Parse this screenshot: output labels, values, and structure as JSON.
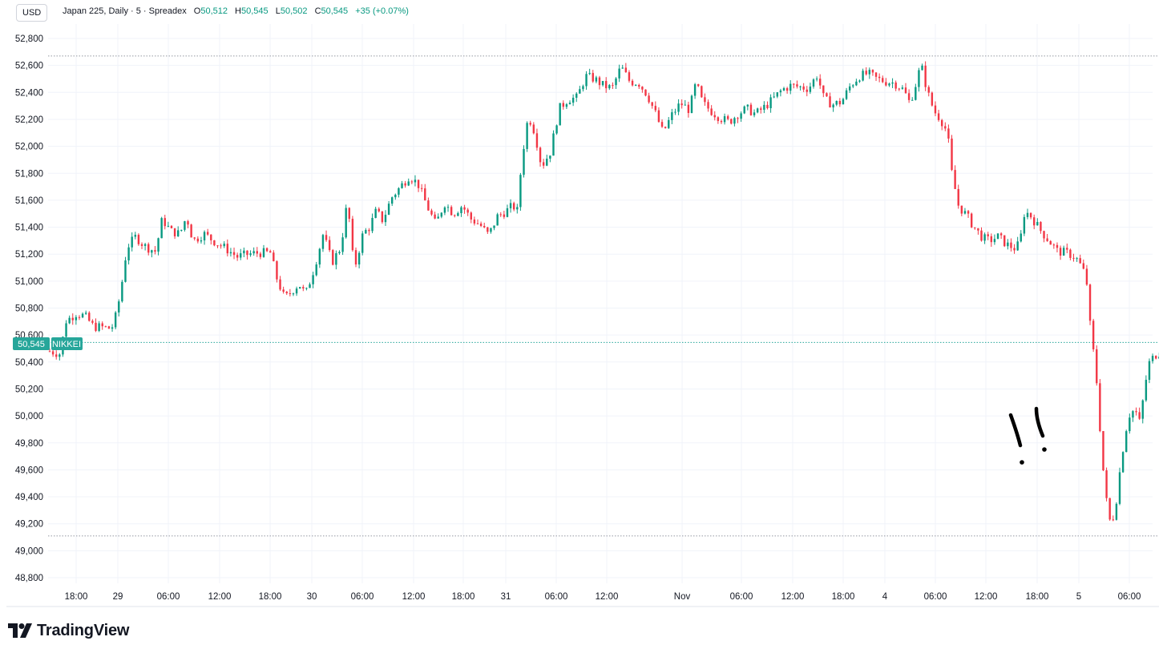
{
  "header": {
    "currency": "USD",
    "symbol": "Japan 225, Daily · 5 · Spreadex",
    "ohlc": {
      "o_label": "O",
      "o_value": "50,512",
      "h_label": "H",
      "h_value": "50,545",
      "l_label": "L",
      "l_value": "50,502",
      "c_label": "C",
      "c_value": "50,545",
      "change": "+35 (+0.07%)"
    }
  },
  "last_price_label": {
    "price": "50,545",
    "tag": "NIKKEI"
  },
  "brand": {
    "name": "TradingView"
  },
  "colors": {
    "up": "#089981",
    "down": "#f23645",
    "grid": "#f0f3fa",
    "accent": "#26a69a"
  },
  "annotation": {
    "text": "!!"
  },
  "chart_data": {
    "type": "candlestick",
    "ylim": [
      48700,
      52900
    ],
    "y_ticks": [
      "52,800",
      "52,600",
      "52,400",
      "52,200",
      "52,000",
      "51,800",
      "51,600",
      "51,400",
      "51,200",
      "51,000",
      "50,800",
      "50,600",
      "50,400",
      "50,200",
      "50,000",
      "49,800",
      "49,600",
      "49,400",
      "49,200",
      "49,000",
      "48,800"
    ],
    "x_ticks": [
      "18:00",
      "29",
      "06:00",
      "12:00",
      "18:00",
      "30",
      "06:00",
      "12:00",
      "18:00",
      "31",
      "06:00",
      "12:00",
      "Nov",
      "06:00",
      "12:00",
      "18:00",
      "4",
      "06:00",
      "12:00",
      "18:00",
      "5",
      "06:00"
    ],
    "reference_lines": {
      "high": 52670,
      "low": 49110,
      "last": 50545
    },
    "price_path": [
      [
        0.0,
        50480
      ],
      [
        0.01,
        50460
      ],
      [
        0.014,
        50700
      ],
      [
        0.024,
        50760
      ],
      [
        0.032,
        50740
      ],
      [
        0.04,
        50660
      ],
      [
        0.046,
        50660
      ],
      [
        0.054,
        50650
      ],
      [
        0.058,
        50670
      ],
      [
        0.064,
        50900
      ],
      [
        0.07,
        51250
      ],
      [
        0.078,
        51330
      ],
      [
        0.086,
        51260
      ],
      [
        0.096,
        51220
      ],
      [
        0.102,
        51460
      ],
      [
        0.11,
        51370
      ],
      [
        0.118,
        51350
      ],
      [
        0.124,
        51480
      ],
      [
        0.13,
        51300
      ],
      [
        0.14,
        51350
      ],
      [
        0.15,
        51290
      ],
      [
        0.16,
        51240
      ],
      [
        0.17,
        51180
      ],
      [
        0.18,
        51200
      ],
      [
        0.19,
        51210
      ],
      [
        0.2,
        51210
      ],
      [
        0.206,
        51020
      ],
      [
        0.213,
        50870
      ],
      [
        0.22,
        50930
      ],
      [
        0.226,
        50980
      ],
      [
        0.232,
        50900
      ],
      [
        0.24,
        51100
      ],
      [
        0.248,
        51350
      ],
      [
        0.256,
        51140
      ],
      [
        0.264,
        51250
      ],
      [
        0.27,
        51600
      ],
      [
        0.276,
        51080
      ],
      [
        0.284,
        51350
      ],
      [
        0.29,
        51400
      ],
      [
        0.296,
        51520
      ],
      [
        0.302,
        51450
      ],
      [
        0.31,
        51620
      ],
      [
        0.318,
        51700
      ],
      [
        0.326,
        51780
      ],
      [
        0.334,
        51720
      ],
      [
        0.342,
        51560
      ],
      [
        0.35,
        51420
      ],
      [
        0.358,
        51580
      ],
      [
        0.366,
        51500
      ],
      [
        0.374,
        51560
      ],
      [
        0.382,
        51460
      ],
      [
        0.39,
        51420
      ],
      [
        0.398,
        51340
      ],
      [
        0.406,
        51480
      ],
      [
        0.414,
        51520
      ],
      [
        0.42,
        51560
      ],
      [
        0.424,
        51520
      ],
      [
        0.428,
        51900
      ],
      [
        0.434,
        52230
      ],
      [
        0.44,
        52100
      ],
      [
        0.446,
        51850
      ],
      [
        0.454,
        51960
      ],
      [
        0.462,
        52280
      ],
      [
        0.47,
        52350
      ],
      [
        0.478,
        52360
      ],
      [
        0.486,
        52520
      ],
      [
        0.494,
        52500
      ],
      [
        0.502,
        52450
      ],
      [
        0.51,
        52430
      ],
      [
        0.518,
        52590
      ],
      [
        0.526,
        52480
      ],
      [
        0.534,
        52470
      ],
      [
        0.542,
        52380
      ],
      [
        0.55,
        52230
      ],
      [
        0.556,
        52100
      ],
      [
        0.564,
        52230
      ],
      [
        0.572,
        52320
      ],
      [
        0.58,
        52270
      ],
      [
        0.586,
        52470
      ],
      [
        0.592,
        52320
      ],
      [
        0.6,
        52260
      ],
      [
        0.608,
        52210
      ],
      [
        0.616,
        52180
      ],
      [
        0.624,
        52240
      ],
      [
        0.632,
        52280
      ],
      [
        0.64,
        52240
      ],
      [
        0.648,
        52290
      ],
      [
        0.656,
        52350
      ],
      [
        0.664,
        52420
      ],
      [
        0.672,
        52450
      ],
      [
        0.68,
        52440
      ],
      [
        0.688,
        52430
      ],
      [
        0.696,
        52530
      ],
      [
        0.702,
        52350
      ],
      [
        0.71,
        52310
      ],
      [
        0.718,
        52330
      ],
      [
        0.726,
        52450
      ],
      [
        0.734,
        52520
      ],
      [
        0.742,
        52540
      ],
      [
        0.75,
        52500
      ],
      [
        0.758,
        52480
      ],
      [
        0.766,
        52470
      ],
      [
        0.774,
        52420
      ],
      [
        0.78,
        52320
      ],
      [
        0.786,
        52480
      ],
      [
        0.79,
        52610
      ],
      [
        0.796,
        52400
      ],
      [
        0.802,
        52260
      ],
      [
        0.808,
        52200
      ],
      [
        0.814,
        52100
      ],
      [
        0.818,
        51800
      ],
      [
        0.824,
        51560
      ],
      [
        0.832,
        51480
      ],
      [
        0.838,
        51400
      ],
      [
        0.846,
        51320
      ],
      [
        0.852,
        51300
      ],
      [
        0.86,
        51330
      ],
      [
        0.868,
        51270
      ],
      [
        0.876,
        51240
      ],
      [
        0.88,
        51300
      ],
      [
        0.884,
        51520
      ],
      [
        0.89,
        51480
      ],
      [
        0.898,
        51380
      ],
      [
        0.906,
        51300
      ],
      [
        0.914,
        51220
      ],
      [
        0.922,
        51210
      ],
      [
        0.93,
        51180
      ],
      [
        0.936,
        51100
      ],
      [
        0.94,
        51020
      ],
      [
        0.943,
        50700
      ],
      [
        0.946,
        50500
      ],
      [
        0.95,
        50200
      ],
      [
        0.954,
        49700
      ],
      [
        0.958,
        49380
      ],
      [
        0.962,
        49190
      ],
      [
        0.966,
        49300
      ],
      [
        0.972,
        49700
      ],
      [
        0.978,
        50000
      ],
      [
        0.984,
        50050
      ],
      [
        0.988,
        49950
      ],
      [
        0.992,
        50150
      ],
      [
        0.996,
        50380
      ],
      [
        1.002,
        50450
      ],
      [
        1.008,
        50480
      ],
      [
        1.012,
        50540
      ]
    ],
    "candle_count": 340
  }
}
